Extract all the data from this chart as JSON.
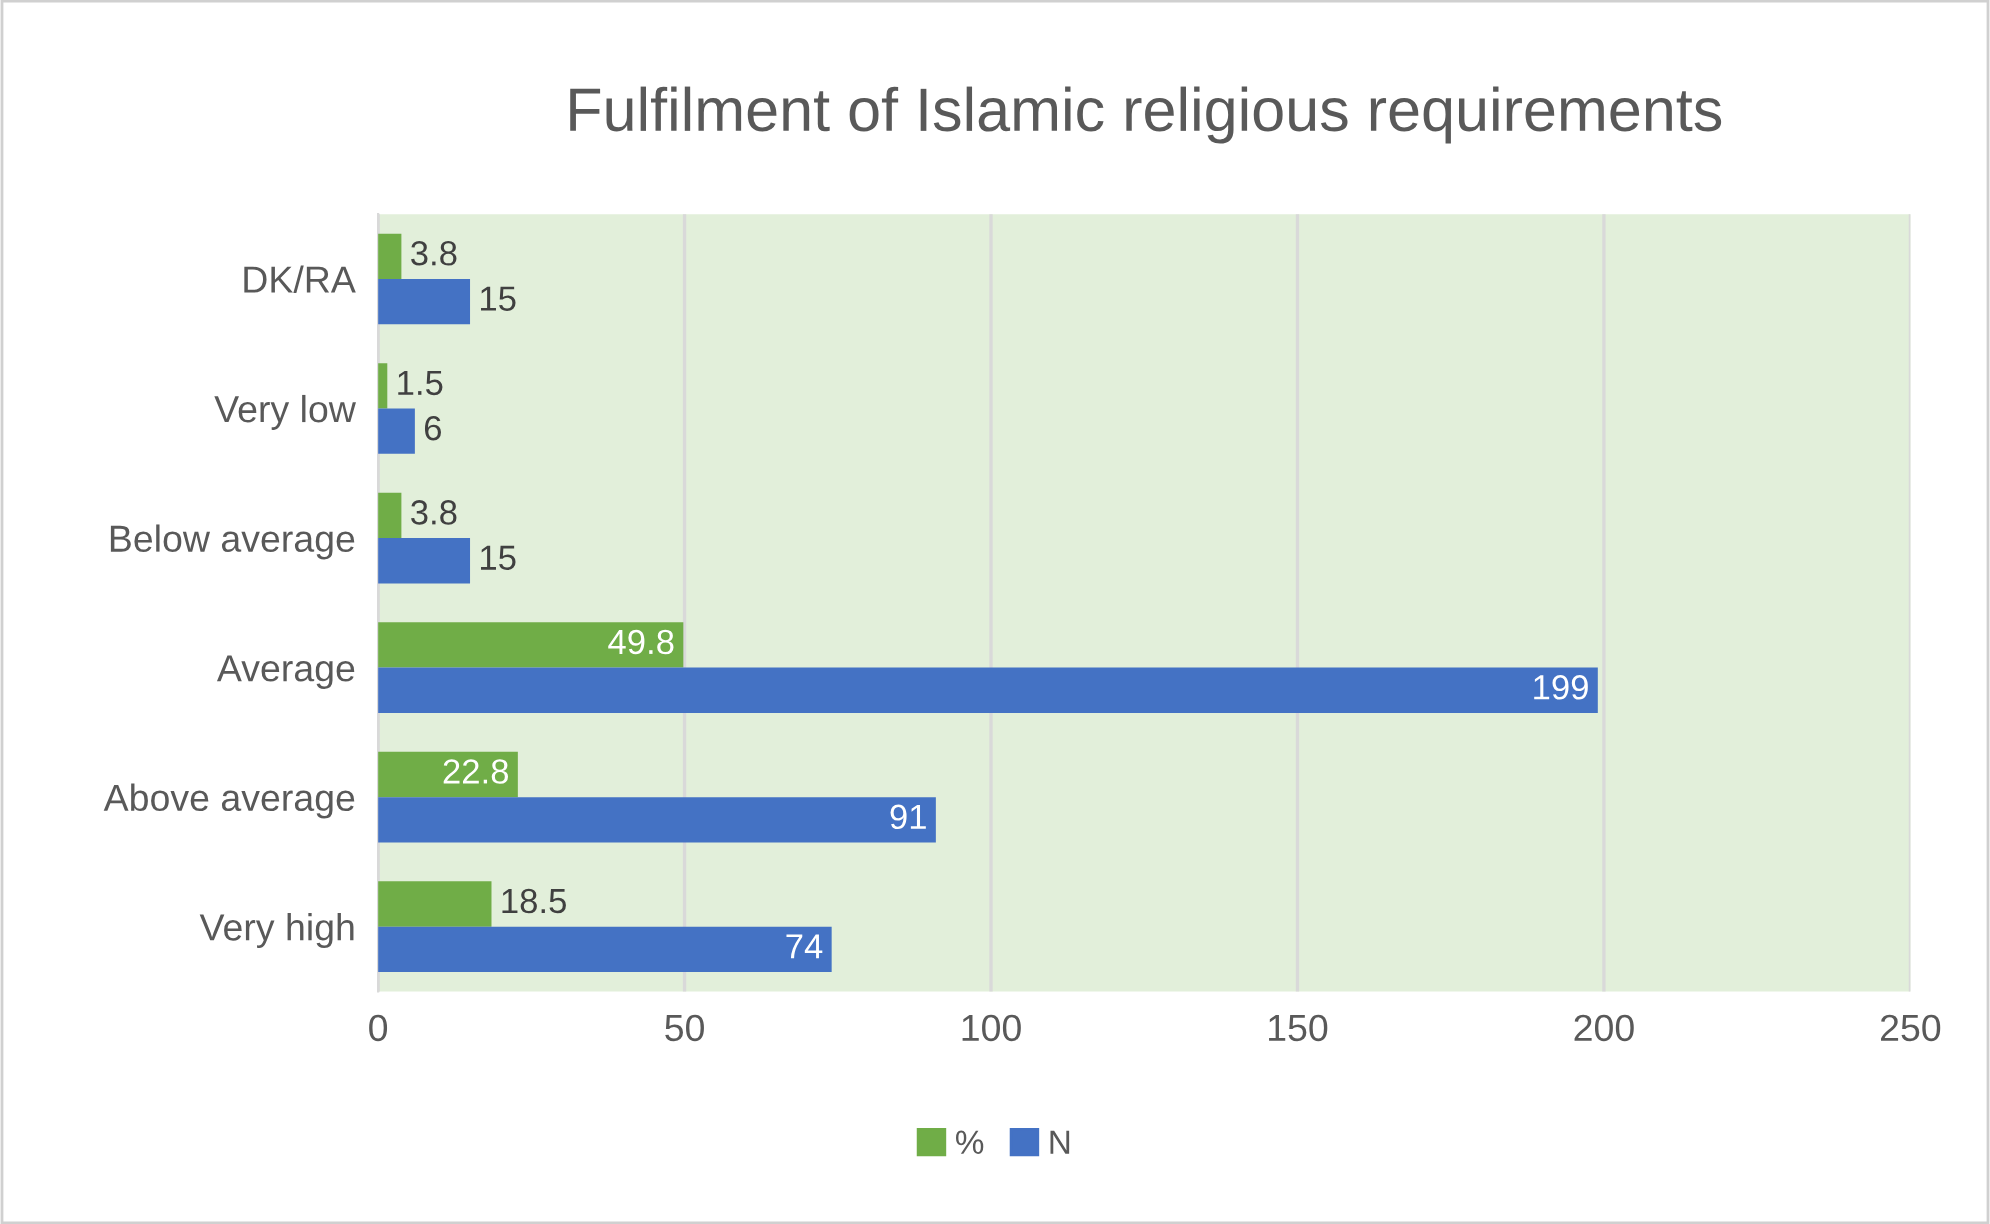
{
  "chart_data": {
    "type": "bar",
    "orientation": "horizontal",
    "title": "Fulfilment of Islamic religious requirements",
    "categories": [
      "DK/RA",
      "Very low",
      "Below average",
      "Average",
      "Above average",
      "Very high"
    ],
    "series": [
      {
        "name": "%",
        "color": "#70ad47",
        "values": [
          3.8,
          1.5,
          3.8,
          49.8,
          22.8,
          18.5
        ]
      },
      {
        "name": "N",
        "color": "#4472c4",
        "values": [
          15,
          6,
          15,
          199,
          91,
          74
        ]
      }
    ],
    "xlim": [
      0,
      250
    ],
    "xticks": [
      0,
      50,
      100,
      150,
      200,
      250
    ],
    "grid": "x",
    "legend": "bottom",
    "data_labels": true
  }
}
